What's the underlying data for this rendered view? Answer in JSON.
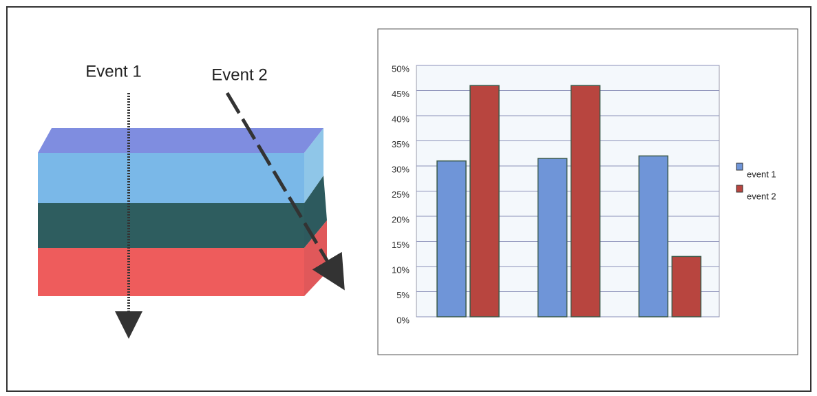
{
  "diagram": {
    "labels": [
      "Event 1",
      "Event 2"
    ]
  },
  "chart_data": {
    "type": "bar",
    "categories": [
      null,
      null,
      null
    ],
    "series": [
      {
        "name": "event 1",
        "color": "#6f95d8",
        "values": [
          31,
          31.5,
          32
        ]
      },
      {
        "name": "event 2",
        "color": "#b8453f",
        "values": [
          46,
          46,
          12
        ]
      }
    ],
    "ylim": [
      0,
      50
    ],
    "yticks": [
      {
        "value": 0,
        "label": "0%"
      },
      {
        "value": 5,
        "label": "5%"
      },
      {
        "value": 10,
        "label": "10%"
      },
      {
        "value": 15,
        "label": "15%"
      },
      {
        "value": 20,
        "label": "20%"
      },
      {
        "value": 25,
        "label": "25%"
      },
      {
        "value": 30,
        "label": "30%"
      },
      {
        "value": 35,
        "label": "35%"
      },
      {
        "value": 40,
        "label": "40%"
      },
      {
        "value": 45,
        "label": "45%"
      },
      {
        "value": 50,
        "label": "50%"
      }
    ],
    "grid": true,
    "legend": "right"
  }
}
